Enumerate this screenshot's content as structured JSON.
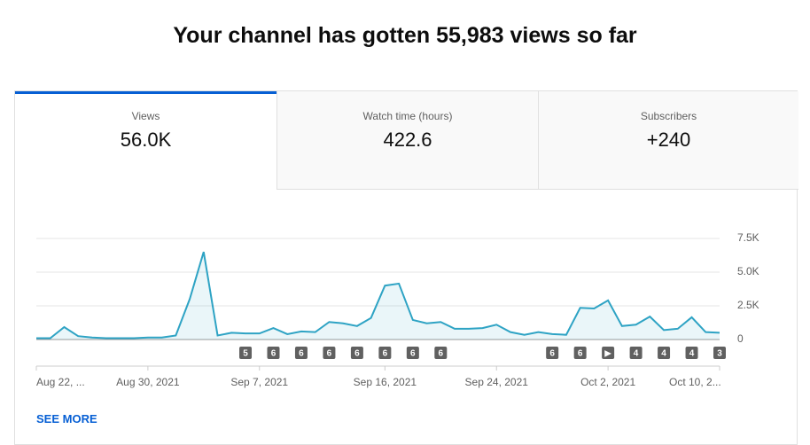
{
  "header": {
    "title": "Your channel has gotten 55,983 views so far"
  },
  "tabs": [
    {
      "label": "Views",
      "value": "56.0K"
    },
    {
      "label": "Watch time (hours)",
      "value": "422.6"
    },
    {
      "label": "Subscribers",
      "value": "+240"
    }
  ],
  "chart_data": {
    "type": "line",
    "color": "#2ea3c4",
    "categories": [
      "Aug 22, ...",
      null,
      null,
      null,
      null,
      null,
      null,
      null,
      "Aug 30, 2021",
      null,
      null,
      null,
      null,
      null,
      null,
      null,
      "Sep 7, 2021",
      null,
      null,
      null,
      null,
      null,
      null,
      null,
      null,
      "Sep 16, 2021",
      null,
      null,
      null,
      null,
      null,
      null,
      null,
      "Sep 24, 2021",
      null,
      null,
      null,
      null,
      null,
      null,
      null,
      "Oct 2, 2021",
      null,
      null,
      null,
      null,
      null,
      null,
      null,
      "Oct 10, 2..."
    ],
    "values": [
      100,
      100,
      920,
      250,
      150,
      100,
      100,
      100,
      150,
      150,
      300,
      3000,
      6500,
      300,
      500,
      450,
      450,
      850,
      400,
      600,
      550,
      1300,
      1200,
      1000,
      1600,
      4000,
      4150,
      1450,
      1200,
      1300,
      800,
      800,
      850,
      1100,
      550,
      350,
      550,
      400,
      350,
      2350,
      2300,
      2900,
      1000,
      1100,
      1700,
      700,
      800,
      1650,
      550,
      500
    ],
    "markers": [
      null,
      null,
      null,
      null,
      null,
      null,
      null,
      null,
      null,
      null,
      null,
      null,
      null,
      null,
      null,
      "5",
      null,
      "6",
      null,
      "6",
      null,
      "6",
      null,
      "6",
      null,
      "6",
      null,
      "6",
      null,
      "6",
      null,
      null,
      null,
      null,
      null,
      null,
      null,
      "6",
      null,
      "6",
      null,
      "▶",
      null,
      "4",
      null,
      "4",
      null,
      "4",
      null,
      "3"
    ],
    "ylim": [
      0,
      7500
    ],
    "yticks": [
      0,
      {
        "value": 2500,
        "label": "2.5K"
      },
      {
        "value": 5000,
        "label": "5.0K"
      },
      {
        "value": 7500,
        "label": "7.5K"
      }
    ],
    "grid": true
  },
  "footer": {
    "link": "SEE MORE"
  }
}
